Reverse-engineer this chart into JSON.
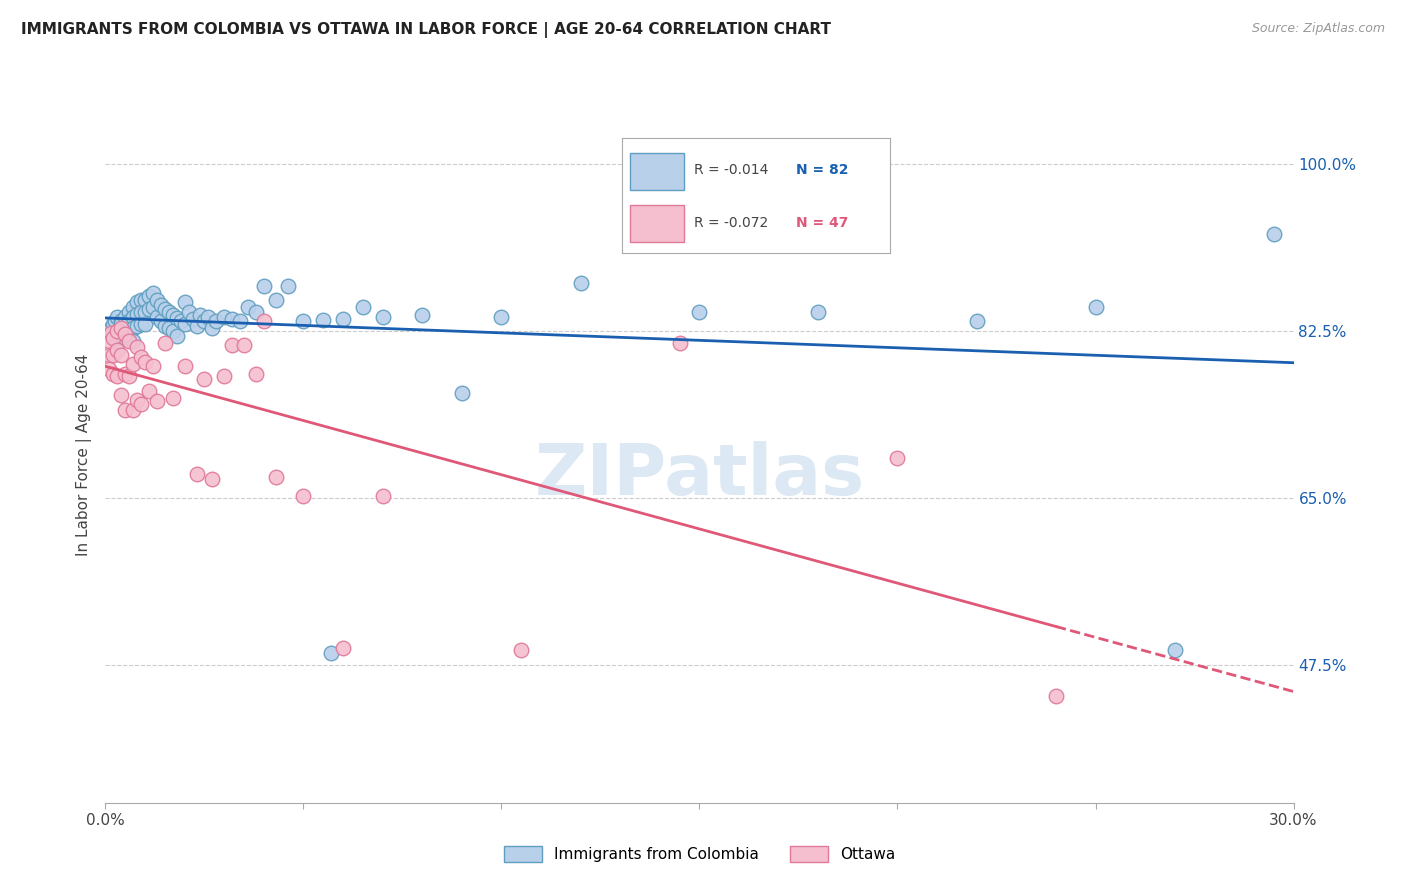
{
  "title": "IMMIGRANTS FROM COLOMBIA VS OTTAWA IN LABOR FORCE | AGE 20-64 CORRELATION CHART",
  "source": "Source: ZipAtlas.com",
  "ylabel": "In Labor Force | Age 20-64",
  "xlim": [
    0.0,
    0.3
  ],
  "ylim": [
    0.33,
    1.06
  ],
  "yticks": [
    0.475,
    0.65,
    0.825,
    1.0
  ],
  "ytick_labels": [
    "47.5%",
    "65.0%",
    "82.5%",
    "100.0%"
  ],
  "xticks": [
    0.0,
    0.05,
    0.1,
    0.15,
    0.2,
    0.25,
    0.3
  ],
  "xtick_labels": [
    "0.0%",
    "",
    "",
    "",
    "",
    "",
    "30.0%"
  ],
  "blue_label": "Immigrants from Colombia",
  "pink_label": "Ottawa",
  "blue_R": "-0.014",
  "blue_N": "82",
  "pink_R": "-0.072",
  "pink_N": "47",
  "blue_fill": "#b8d0ea",
  "blue_edge": "#5f9ec0",
  "pink_fill": "#f5bfd0",
  "pink_edge": "#e07898",
  "blue_line": "#1a5fb0",
  "pink_line": "#e05878",
  "watermark_color": "#dce8f4",
  "grid_color": "#cccccc",
  "blue_x": [
    0.001,
    0.0015,
    0.002,
    0.002,
    0.0025,
    0.003,
    0.003,
    0.003,
    0.004,
    0.004,
    0.004,
    0.005,
    0.005,
    0.005,
    0.006,
    0.006,
    0.006,
    0.007,
    0.007,
    0.007,
    0.007,
    0.008,
    0.008,
    0.008,
    0.009,
    0.009,
    0.009,
    0.01,
    0.01,
    0.01,
    0.011,
    0.011,
    0.012,
    0.012,
    0.013,
    0.013,
    0.014,
    0.014,
    0.015,
    0.015,
    0.016,
    0.016,
    0.017,
    0.017,
    0.018,
    0.018,
    0.019,
    0.02,
    0.02,
    0.021,
    0.022,
    0.023,
    0.024,
    0.025,
    0.026,
    0.027,
    0.028,
    0.03,
    0.032,
    0.034,
    0.036,
    0.038,
    0.04,
    0.043,
    0.046,
    0.05,
    0.055,
    0.06,
    0.065,
    0.07,
    0.08,
    0.09,
    0.1,
    0.12,
    0.15,
    0.18,
    0.22,
    0.25,
    0.27,
    0.295,
    0.057,
    0.143
  ],
  "blue_y": [
    0.825,
    0.828,
    0.832,
    0.822,
    0.836,
    0.84,
    0.82,
    0.815,
    0.835,
    0.832,
    0.822,
    0.84,
    0.825,
    0.818,
    0.845,
    0.835,
    0.822,
    0.85,
    0.84,
    0.828,
    0.815,
    0.855,
    0.843,
    0.83,
    0.858,
    0.845,
    0.832,
    0.858,
    0.845,
    0.832,
    0.862,
    0.848,
    0.865,
    0.85,
    0.858,
    0.84,
    0.852,
    0.835,
    0.848,
    0.83,
    0.845,
    0.828,
    0.842,
    0.825,
    0.839,
    0.82,
    0.835,
    0.855,
    0.832,
    0.845,
    0.838,
    0.83,
    0.842,
    0.835,
    0.84,
    0.828,
    0.835,
    0.84,
    0.838,
    0.835,
    0.85,
    0.845,
    0.872,
    0.858,
    0.872,
    0.836,
    0.837,
    0.838,
    0.85,
    0.84,
    0.842,
    0.76,
    0.84,
    0.875,
    0.845,
    0.845,
    0.835,
    0.85,
    0.49,
    0.927,
    0.487,
    0.94
  ],
  "pink_x": [
    0.001,
    0.001,
    0.001,
    0.0015,
    0.002,
    0.002,
    0.002,
    0.003,
    0.003,
    0.003,
    0.004,
    0.004,
    0.004,
    0.005,
    0.005,
    0.005,
    0.006,
    0.006,
    0.007,
    0.007,
    0.008,
    0.008,
    0.009,
    0.009,
    0.01,
    0.011,
    0.012,
    0.013,
    0.015,
    0.017,
    0.02,
    0.023,
    0.025,
    0.027,
    0.03,
    0.032,
    0.035,
    0.038,
    0.04,
    0.043,
    0.05,
    0.06,
    0.07,
    0.105,
    0.145,
    0.2,
    0.24
  ],
  "pink_y": [
    0.815,
    0.8,
    0.785,
    0.823,
    0.818,
    0.8,
    0.78,
    0.825,
    0.805,
    0.778,
    0.828,
    0.8,
    0.758,
    0.822,
    0.78,
    0.742,
    0.815,
    0.778,
    0.79,
    0.742,
    0.808,
    0.753,
    0.798,
    0.748,
    0.792,
    0.762,
    0.788,
    0.752,
    0.812,
    0.755,
    0.788,
    0.675,
    0.775,
    0.67,
    0.778,
    0.81,
    0.81,
    0.78,
    0.835,
    0.672,
    0.652,
    0.492,
    0.652,
    0.49,
    0.812,
    0.692,
    0.442
  ]
}
